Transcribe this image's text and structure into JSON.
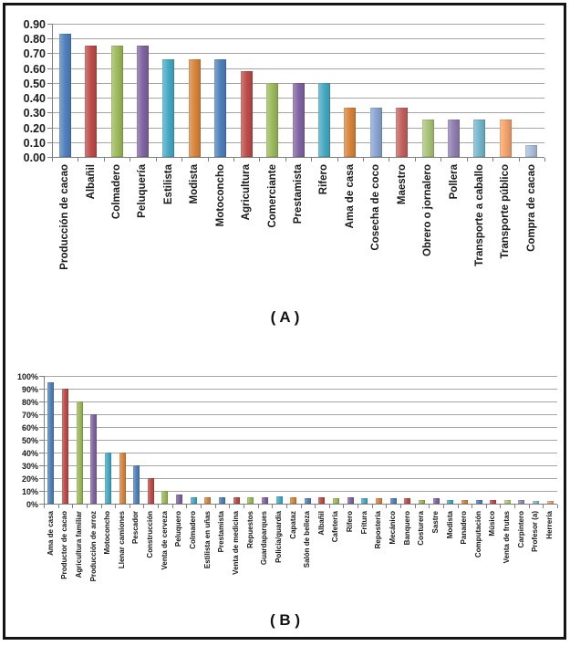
{
  "figure": {
    "background": "#ffffff",
    "border_color": "#151515",
    "gridline_color": "#a6a6a6",
    "axis_color": "#7f7f7f",
    "text_color": "#1a1a1a"
  },
  "chart_data": [
    {
      "type": "bar",
      "caption": "( A )",
      "title": "",
      "xlabel": "",
      "ylabel": "",
      "ylim": [
        0,
        0.9
      ],
      "ytick_step": 0.1,
      "grid": true,
      "legend": false,
      "yticks": [
        "0.90",
        "0.80",
        "0.70",
        "0.60",
        "0.50",
        "0.40",
        "0.30",
        "0.20",
        "0.10",
        "0.00"
      ],
      "categories": [
        "Producción de cacao",
        "Albañil",
        "Colmadero",
        "Peluquería",
        "Estilista",
        "Modista",
        "Motoconcho",
        "Agricultura",
        "Comerciante",
        "Prestamista",
        "Rifero",
        "Ama de casa",
        "Cosecha de coco",
        "Maestro",
        "Obrero o jornalero",
        "Pollera",
        "Transporte a caballo",
        "Transporte público",
        "Compra de cacao"
      ],
      "values": [
        0.83,
        0.75,
        0.75,
        0.75,
        0.66,
        0.66,
        0.66,
        0.58,
        0.5,
        0.5,
        0.5,
        0.33,
        0.33,
        0.33,
        0.25,
        0.25,
        0.25,
        0.25,
        0.08
      ],
      "colors": [
        "#4F81BD",
        "#BE4B48",
        "#9BBB59",
        "#8064A2",
        "#46AAC5",
        "#D9843B",
        "#4F81BD",
        "#BE4B48",
        "#9BBB59",
        "#8064A2",
        "#46AAC5",
        "#D9843B",
        "#89A5D2",
        "#C4615E",
        "#A9C377",
        "#907FB1",
        "#74B6CC",
        "#F5A268",
        "#A9BFDC"
      ]
    },
    {
      "type": "bar",
      "caption": "( B )",
      "title": "",
      "xlabel": "",
      "ylabel": "",
      "ylim": [
        0,
        100
      ],
      "ytick_step": 10,
      "grid": true,
      "legend": false,
      "yticks": [
        "100%",
        "90%",
        "80%",
        "70%",
        "60%",
        "50%",
        "40%",
        "30%",
        "20%",
        "10%",
        "0%"
      ],
      "categories": [
        "Ama de casa",
        "Productor de cacao",
        "Agricultura familiar",
        "Producción de arroz",
        "Motoconcho",
        "Llenar camiones",
        "Pescador",
        "Construcción",
        "Venta de cerveza",
        "Peluquero",
        "Colmadero",
        "Estilista en uñas",
        "Prestamista",
        "Venta de medicina",
        "Repuestos",
        "Guardaparques",
        "Policía/guardia",
        "Capataz",
        "Salón de belleza",
        "Albañil",
        "Cafetería",
        "Rifero",
        "Fritura",
        "Repostería",
        "Mecánico",
        "Banquero",
        "Costurera",
        "Sastre",
        "Modista",
        "Panadero",
        "Computación",
        "Músico",
        "Venta de frutas",
        "Carpintero",
        "Profesor (a)",
        "Herrería"
      ],
      "values": [
        95,
        90,
        80,
        70,
        40,
        40,
        30,
        20,
        10,
        7,
        5,
        5,
        5,
        5,
        5,
        5,
        6,
        5,
        4,
        5,
        4,
        5,
        4,
        4,
        4,
        4,
        3,
        4,
        3,
        3,
        3,
        3,
        3,
        3,
        2,
        2
      ],
      "colors": [
        "#4F81BD",
        "#BE4B48",
        "#9BBB59",
        "#8064A2",
        "#46AAC5",
        "#D9843B",
        "#4F81BD",
        "#BE4B48",
        "#9BBB59",
        "#8064A2",
        "#46AAC5",
        "#D9843B",
        "#4F81BD",
        "#BE4B48",
        "#9BBB59",
        "#8064A2",
        "#46AAC5",
        "#D9843B",
        "#4F81BD",
        "#BE4B48",
        "#9BBB59",
        "#8064A2",
        "#46AAC5",
        "#D9843B",
        "#4F81BD",
        "#BE4B48",
        "#9BBB59",
        "#8064A2",
        "#46AAC5",
        "#D9843B",
        "#4F81BD",
        "#BE4B48",
        "#AECB7E",
        "#9A89B8",
        "#85C1D4",
        "#EFA671"
      ]
    }
  ]
}
